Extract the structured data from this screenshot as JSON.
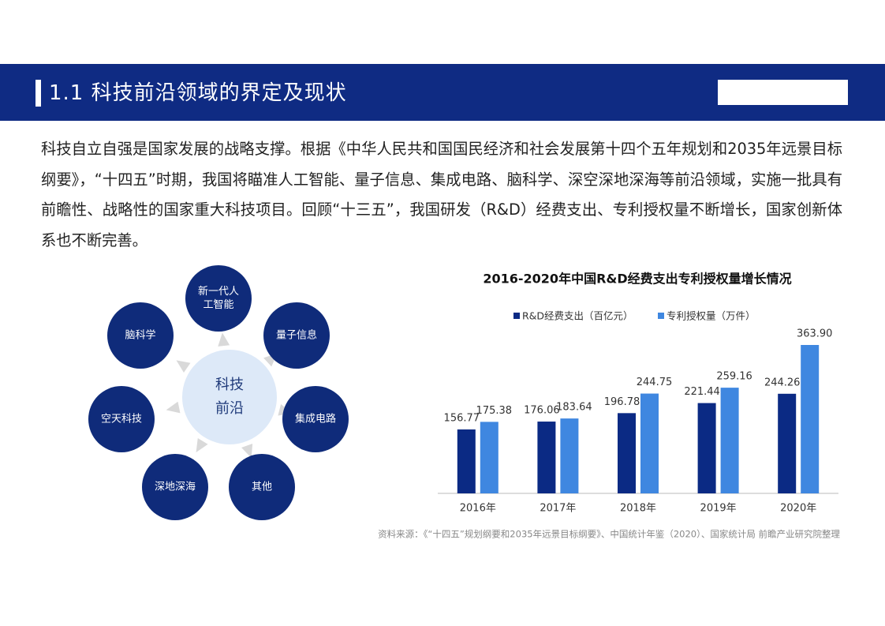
{
  "header": {
    "title": "1.1 科技前沿领域的界定及现状"
  },
  "paragraph": "科技自立自强是国家发展的战略支撑。根据《中华人民共和国国民经济和社会发展第十四个五年规划和2035年远景目标纲要》，“十四五”时期，我国将瞄准人工智能、量子信息、集成电路、脑科学、深空深地深海等前沿领域，实施一批具有前瞻性、战略性的国家重大科技项目。回顾“十三五”，我国研发（R&D）经费支出、专利授权量不断增长，国家创新体系也不断完善。",
  "diagram": {
    "center": [
      "科技",
      "前沿"
    ],
    "nodes": [
      [
        "新一代人",
        "工智能"
      ],
      [
        "量子信息"
      ],
      [
        "集成电路"
      ],
      [
        "其他"
      ],
      [
        "深地深海"
      ],
      [
        "空天科技"
      ],
      [
        "脑科学"
      ]
    ]
  },
  "chart_data": {
    "type": "bar",
    "title": "2016-2020年中国R&D经费支出专利授权量增长情况",
    "categories": [
      "2016年",
      "2017年",
      "2018年",
      "2019年",
      "2020年"
    ],
    "series": [
      {
        "name": "R&D经费支出（百亿元）",
        "color": "#0b2a84",
        "values": [
          156.77,
          176.06,
          196.78,
          221.44,
          244.26
        ]
      },
      {
        "name": "专利授权量（万件）",
        "color": "#3f87e0",
        "values": [
          175.38,
          183.64,
          244.75,
          259.16,
          363.9
        ],
        "value_labels": [
          "175.38",
          "183.64",
          "244.75",
          "259.16",
          "363.90"
        ]
      }
    ]
  },
  "source": "资料来源：《“十四五”规划纲要和2035年远景目标纲要》、中国统计年鉴（2020）、国家统计局 前瞻产业研究院整理"
}
